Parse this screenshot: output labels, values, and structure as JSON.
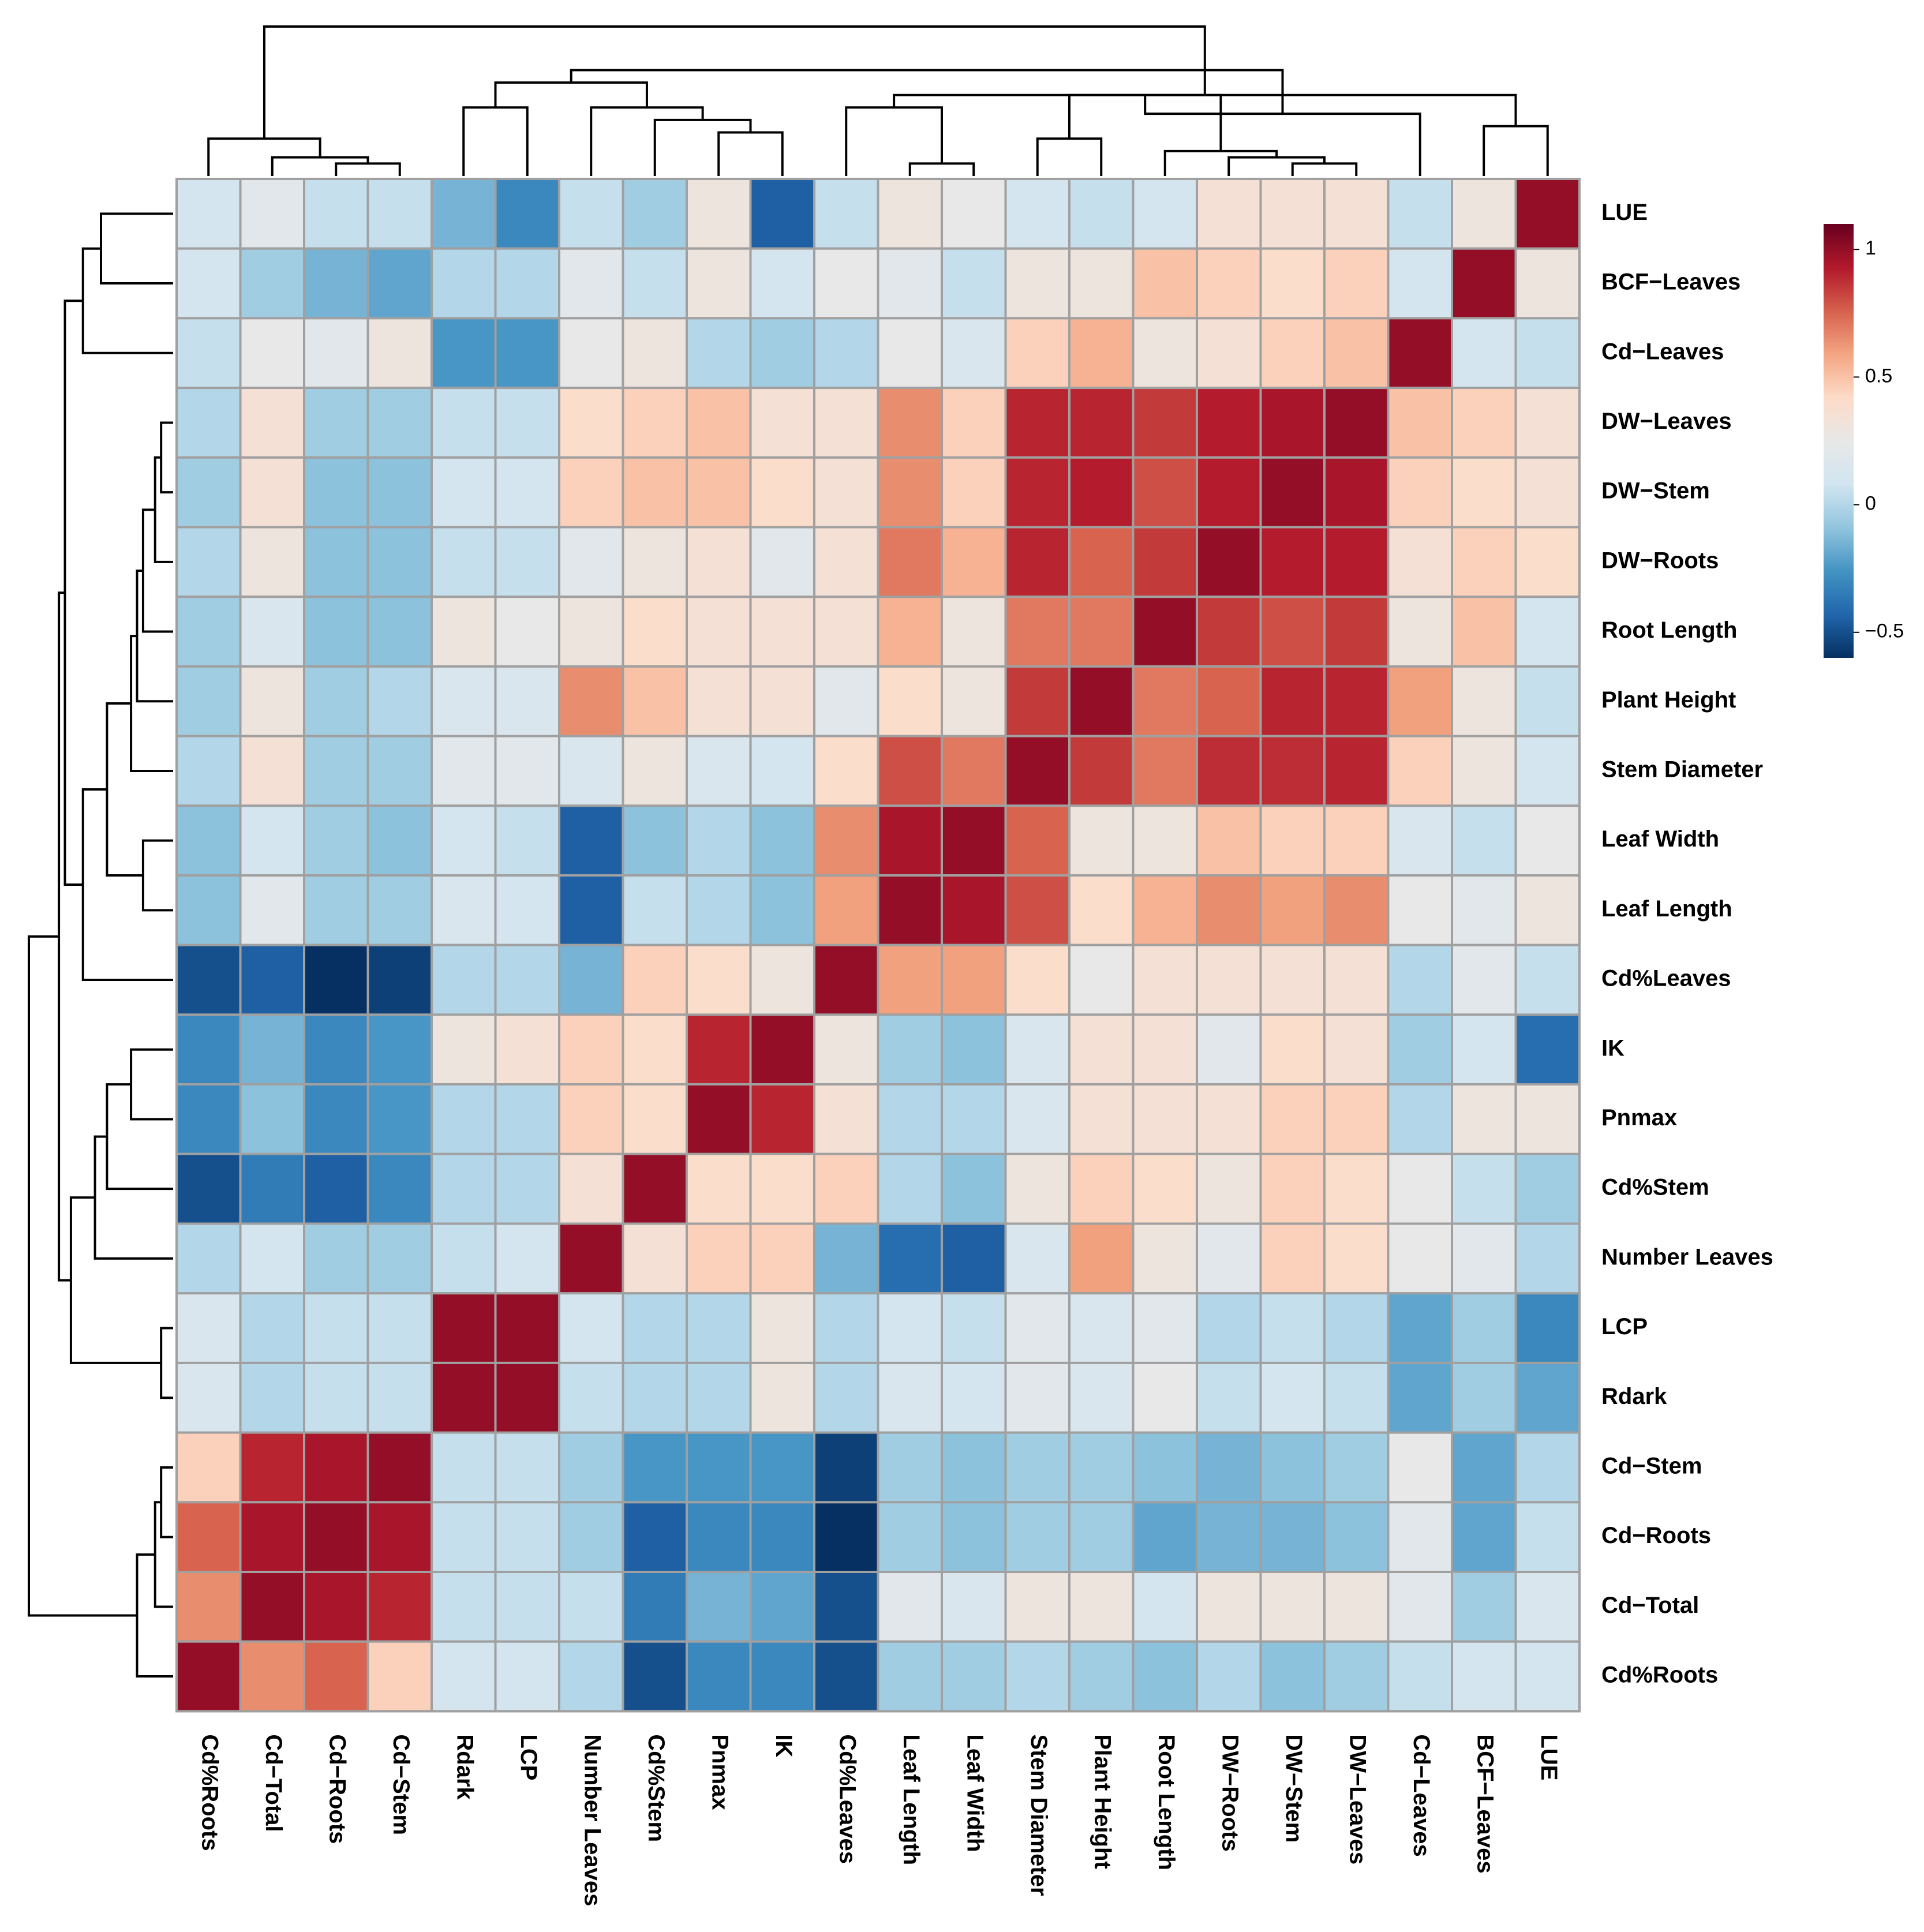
{
  "chart_data": {
    "type": "heatmap",
    "title": "",
    "rows": [
      "LUE",
      "BCF−Leaves",
      "Cd−Leaves",
      "DW−Leaves",
      "DW−Stem",
      "DW−Roots",
      "Root Length",
      "Plant Height",
      "Stem Diameter",
      "Leaf Width",
      "Leaf Length",
      "Cd%Leaves",
      "IK",
      "Pnmax",
      "Cd%Stem",
      "Number Leaves",
      "LCP",
      "Rdark",
      "Cd−Stem",
      "Cd−Roots",
      "Cd−Total",
      "Cd%Roots"
    ],
    "columns": [
      "Cd%Roots",
      "Cd−Total",
      "Cd−Roots",
      "Cd−Stem",
      "Rdark",
      "LCP",
      "Number Leaves",
      "Cd%Stem",
      "Pnmax",
      "IK",
      "Cd%Leaves",
      "Leaf Length",
      "Leaf Width",
      "Stem Diameter",
      "Plant Height",
      "Root Length",
      "DW−Roots",
      "DW−Stem",
      "DW−Leaves",
      "Cd−Leaves",
      "BCF−Leaves",
      "LUE"
    ],
    "values": [
      [
        0.1,
        0.2,
        0.05,
        0.05,
        -0.15,
        -0.3,
        0.05,
        -0.05,
        0.3,
        -0.45,
        0.05,
        0.3,
        0.25,
        0.1,
        0.05,
        0.1,
        0.35,
        0.35,
        0.35,
        0.05,
        0.3,
        1.0
      ],
      [
        0.1,
        -0.05,
        -0.15,
        -0.2,
        0.0,
        0.0,
        0.2,
        0.05,
        0.3,
        0.1,
        0.25,
        0.2,
        0.05,
        0.3,
        0.3,
        0.5,
        0.45,
        0.4,
        0.45,
        0.1,
        1.0,
        0.3
      ],
      [
        0.05,
        0.25,
        0.2,
        0.3,
        -0.25,
        -0.25,
        0.25,
        0.3,
        0.0,
        -0.05,
        0.0,
        0.25,
        0.15,
        0.45,
        0.55,
        0.3,
        0.35,
        0.45,
        0.5,
        1.0,
        0.1,
        0.05
      ],
      [
        0.0,
        0.35,
        -0.05,
        -0.05,
        0.05,
        0.05,
        0.4,
        0.45,
        0.5,
        0.35,
        0.35,
        0.65,
        0.45,
        0.9,
        0.9,
        0.85,
        0.92,
        0.95,
        1.0,
        0.5,
        0.45,
        0.35
      ],
      [
        -0.05,
        0.35,
        -0.1,
        -0.1,
        0.1,
        0.1,
        0.45,
        0.5,
        0.5,
        0.4,
        0.35,
        0.65,
        0.45,
        0.9,
        0.92,
        0.8,
        0.92,
        1.0,
        0.95,
        0.45,
        0.4,
        0.35
      ],
      [
        0.0,
        0.3,
        -0.1,
        -0.1,
        0.05,
        0.05,
        0.2,
        0.3,
        0.35,
        0.2,
        0.35,
        0.7,
        0.55,
        0.9,
        0.75,
        0.85,
        1.0,
        0.92,
        0.92,
        0.35,
        0.45,
        0.4
      ],
      [
        -0.05,
        0.15,
        -0.1,
        -0.1,
        0.3,
        0.25,
        0.3,
        0.4,
        0.35,
        0.35,
        0.35,
        0.55,
        0.3,
        0.7,
        0.7,
        1.0,
        0.85,
        0.8,
        0.85,
        0.3,
        0.5,
        0.1
      ],
      [
        -0.05,
        0.3,
        -0.05,
        0.0,
        0.15,
        0.15,
        0.65,
        0.5,
        0.35,
        0.35,
        0.2,
        0.4,
        0.3,
        0.85,
        1.0,
        0.7,
        0.75,
        0.9,
        0.9,
        0.6,
        0.3,
        0.05
      ],
      [
        0.0,
        0.35,
        -0.05,
        -0.05,
        0.2,
        0.2,
        0.15,
        0.3,
        0.15,
        0.1,
        0.4,
        0.8,
        0.7,
        1.0,
        0.85,
        0.7,
        0.88,
        0.88,
        0.9,
        0.45,
        0.3,
        0.1
      ],
      [
        -0.1,
        0.1,
        -0.05,
        -0.1,
        0.1,
        0.05,
        -0.45,
        -0.1,
        0.0,
        -0.1,
        0.65,
        0.95,
        1.0,
        0.75,
        0.3,
        0.3,
        0.5,
        0.45,
        0.45,
        0.15,
        0.05,
        0.25
      ],
      [
        -0.1,
        0.2,
        -0.05,
        -0.05,
        0.15,
        0.1,
        -0.45,
        0.05,
        0.0,
        -0.1,
        0.6,
        1.0,
        0.95,
        0.8,
        0.4,
        0.55,
        0.65,
        0.6,
        0.65,
        0.25,
        0.2,
        0.3
      ],
      [
        -0.5,
        -0.45,
        -0.6,
        -0.55,
        0.0,
        0.0,
        -0.15,
        0.45,
        0.4,
        0.3,
        1.0,
        0.6,
        0.6,
        0.4,
        0.25,
        0.35,
        0.35,
        0.35,
        0.35,
        0.0,
        0.2,
        0.05
      ],
      [
        -0.3,
        -0.15,
        -0.3,
        -0.25,
        0.3,
        0.35,
        0.45,
        0.4,
        0.9,
        1.0,
        0.3,
        -0.05,
        -0.1,
        0.15,
        0.35,
        0.35,
        0.2,
        0.4,
        0.35,
        -0.05,
        0.1,
        -0.4
      ],
      [
        -0.3,
        -0.1,
        -0.3,
        -0.25,
        0.0,
        0.0,
        0.45,
        0.4,
        1.0,
        0.9,
        0.35,
        0.0,
        0.0,
        0.15,
        0.35,
        0.35,
        0.35,
        0.45,
        0.45,
        0.0,
        0.3,
        0.3
      ],
      [
        -0.5,
        -0.35,
        -0.45,
        -0.3,
        0.0,
        0.0,
        0.35,
        1.0,
        0.4,
        0.4,
        0.45,
        0.0,
        -0.1,
        0.3,
        0.45,
        0.4,
        0.3,
        0.45,
        0.4,
        0.25,
        0.05,
        -0.05
      ],
      [
        0.0,
        0.1,
        -0.05,
        -0.05,
        0.05,
        0.1,
        1.0,
        0.35,
        0.45,
        0.45,
        -0.15,
        -0.4,
        -0.45,
        0.15,
        0.6,
        0.3,
        0.2,
        0.45,
        0.4,
        0.25,
        0.2,
        0.0
      ],
      [
        0.15,
        0.0,
        0.05,
        0.05,
        1.0,
        1.0,
        0.1,
        0.0,
        0.0,
        0.3,
        0.0,
        0.1,
        0.05,
        0.2,
        0.15,
        0.2,
        0.0,
        0.05,
        0.0,
        -0.2,
        -0.05,
        -0.3
      ],
      [
        0.15,
        0.0,
        0.05,
        0.05,
        1.0,
        1.0,
        0.05,
        0.0,
        0.0,
        0.3,
        0.0,
        0.15,
        0.1,
        0.2,
        0.15,
        0.25,
        0.05,
        0.1,
        0.05,
        -0.2,
        -0.05,
        -0.2
      ],
      [
        0.45,
        0.9,
        0.95,
        1.0,
        0.05,
        0.05,
        -0.05,
        -0.25,
        -0.25,
        -0.25,
        -0.55,
        -0.05,
        -0.1,
        -0.05,
        -0.05,
        -0.1,
        -0.15,
        -0.1,
        -0.05,
        0.25,
        -0.2,
        0.0
      ],
      [
        0.75,
        0.95,
        1.0,
        0.95,
        0.05,
        0.05,
        -0.05,
        -0.45,
        -0.3,
        -0.3,
        -0.6,
        -0.05,
        -0.1,
        -0.05,
        -0.05,
        -0.2,
        -0.15,
        -0.15,
        -0.1,
        0.2,
        -0.2,
        0.05
      ],
      [
        0.65,
        1.0,
        0.95,
        0.9,
        0.05,
        0.05,
        0.05,
        -0.35,
        -0.15,
        -0.2,
        -0.5,
        0.2,
        0.15,
        0.3,
        0.3,
        0.1,
        0.3,
        0.3,
        0.3,
        0.2,
        -0.05,
        0.15
      ],
      [
        1.0,
        0.65,
        0.75,
        0.45,
        0.1,
        0.1,
        0.0,
        -0.5,
        -0.3,
        -0.3,
        -0.5,
        -0.05,
        -0.05,
        0.0,
        -0.05,
        -0.1,
        0.0,
        -0.1,
        -0.05,
        0.05,
        0.1,
        0.1
      ]
    ],
    "colorbar": {
      "min": -0.6,
      "max": 1.1,
      "ticks": [
        1,
        0.5,
        0,
        -0.5
      ],
      "tick_labels": [
        "1",
        "0.5",
        "0",
        "−0.5"
      ]
    },
    "colorscale": [
      "#053061",
      "#2166ac",
      "#4393c3",
      "#92c5de",
      "#d1e5f0",
      "#e8e8e8",
      "#fddbc7",
      "#f4a582",
      "#d6604d",
      "#b2182b",
      "#67001f"
    ],
    "cell_border_color": "#a0a0a0",
    "row_dendrogram": {
      "order": [
        "LUE",
        "BCF−Leaves",
        "Cd−Leaves",
        "DW−Leaves",
        "DW−Stem",
        "DW−Roots",
        "Root Length",
        "Plant Height",
        "Stem Diameter",
        "Leaf Width",
        "Leaf Length",
        "Cd%Leaves",
        "IK",
        "Pnmax",
        "Cd%Stem",
        "Number Leaves",
        "LCP",
        "Rdark",
        "Cd−Stem",
        "Cd−Roots",
        "Cd−Total",
        "Cd%Roots"
      ],
      "merges": [
        [
          0,
          1,
          0.6
        ],
        [
          22,
          2,
          0.75
        ],
        [
          3,
          4,
          0.1
        ],
        [
          24,
          5,
          0.15
        ],
        [
          25,
          6,
          0.25
        ],
        [
          26,
          7,
          0.3
        ],
        [
          27,
          8,
          0.35
        ],
        [
          9,
          10,
          0.25
        ],
        [
          28,
          29,
          0.55
        ],
        [
          30,
          11,
          0.75
        ],
        [
          23,
          31,
          0.9
        ],
        [
          12,
          13,
          0.35
        ],
        [
          33,
          14,
          0.55
        ],
        [
          34,
          15,
          0.65
        ],
        [
          16,
          17,
          0.1
        ],
        [
          35,
          36,
          0.85
        ],
        [
          32,
          37,
          0.95
        ],
        [
          18,
          19,
          0.1
        ],
        [
          39,
          20,
          0.15
        ],
        [
          40,
          21,
          0.3
        ],
        [
          38,
          41,
          1.2
        ]
      ]
    },
    "col_dendrogram": {
      "order": [
        "Cd%Roots",
        "Cd−Total",
        "Cd−Roots",
        "Cd−Stem",
        "Rdark",
        "LCP",
        "Number Leaves",
        "Cd%Stem",
        "Pnmax",
        "IK",
        "Cd%Leaves",
        "Leaf Length",
        "Leaf Width",
        "Stem Diameter",
        "Plant Height",
        "Root Length",
        "DW−Roots",
        "DW−Stem",
        "DW−Leaves",
        "Cd−Leaves",
        "BCF−Leaves",
        "LUE"
      ],
      "merges": [
        [
          2,
          3,
          0.1
        ],
        [
          22,
          1,
          0.15
        ],
        [
          23,
          0,
          0.3
        ],
        [
          4,
          5,
          0.55
        ],
        [
          8,
          9,
          0.35
        ],
        [
          7,
          26,
          0.45
        ],
        [
          6,
          27,
          0.55
        ],
        [
          25,
          28,
          0.75
        ],
        [
          11,
          12,
          0.1
        ],
        [
          30,
          10,
          0.55
        ],
        [
          17,
          18,
          0.1
        ],
        [
          16,
          32,
          0.15
        ],
        [
          33,
          15,
          0.2
        ],
        [
          13,
          14,
          0.3
        ],
        [
          35,
          34,
          0.65
        ],
        [
          20,
          21,
          0.4
        ],
        [
          19,
          36,
          0.5
        ],
        [
          31,
          37,
          0.65
        ],
        [
          38,
          29,
          0.85
        ],
        [
          24,
          39,
          1.2
        ]
      ]
    }
  }
}
